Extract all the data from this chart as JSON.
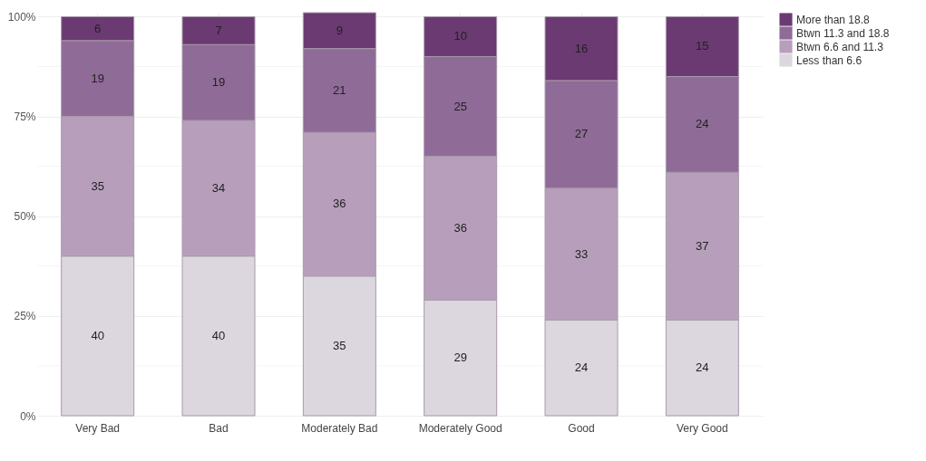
{
  "chart_data": {
    "type": "bar",
    "stacked": true,
    "data_labels": true,
    "grid": true,
    "legend": "right",
    "categories": [
      "Very Bad",
      "Bad",
      "Moderately Bad",
      "Moderately Good",
      "Good",
      "Very Good"
    ],
    "series": [
      {
        "name": "Less than 6.6",
        "color": "#dcd6de",
        "values": [
          40,
          40,
          35,
          29,
          24,
          24
        ]
      },
      {
        "name": "Btwn 6.6 and 11.3",
        "color": "#b79fbc",
        "values": [
          35,
          34,
          36,
          36,
          33,
          37
        ]
      },
      {
        "name": "Btwn 11.3 and 18.8",
        "color": "#8f6b98",
        "values": [
          19,
          19,
          21,
          25,
          27,
          24
        ]
      },
      {
        "name": "More than 18.8",
        "color": "#6b3a72",
        "values": [
          6,
          7,
          9,
          10,
          16,
          15
        ]
      }
    ],
    "ylim": [
      0,
      101
    ],
    "yticks": [
      {
        "value": 0,
        "label": "0%"
      },
      {
        "value": 25,
        "label": "25%"
      },
      {
        "value": 50,
        "label": "50%"
      },
      {
        "value": 75,
        "label": "75%"
      },
      {
        "value": 100,
        "label": "100%"
      }
    ]
  }
}
